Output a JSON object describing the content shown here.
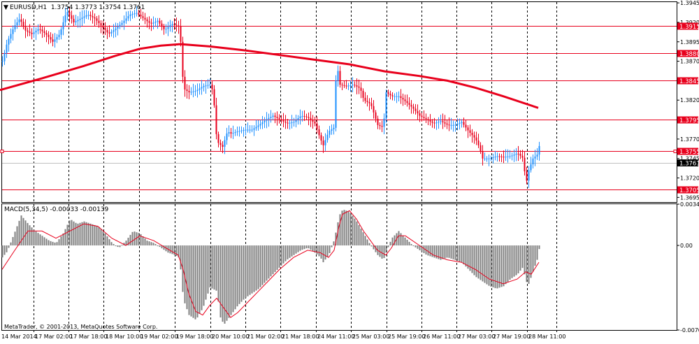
{
  "chart_data": [
    {
      "type": "candlestick",
      "title": "EURUSD,H1  1.3754 1.3773 1.3754 1.3761",
      "symbol": "EURUSD",
      "timeframe": "H1",
      "ohlc_last": [
        1.3754,
        1.3773,
        1.3754,
        1.3761
      ],
      "ylim": [
        1.3689,
        1.3946
      ],
      "grid": true,
      "y_ticks": [
        "1.3945",
        "1.3920",
        "1.3895",
        "1.3870",
        "1.3820",
        "1.3770",
        "1.3745",
        "1.3720",
        "1.3695"
      ],
      "price_label": "1.3761",
      "up_color": "#1e90ff",
      "down_color": "#e8001c",
      "horizontal_levels": [
        {
          "value": 1.3915,
          "label": "1.3915"
        },
        {
          "value": 1.388,
          "label": "1.3880"
        },
        {
          "value": 1.3845,
          "label": "1.3845"
        },
        {
          "value": 1.3795,
          "label": "1.3795"
        },
        {
          "value": 1.3755,
          "label": "1.3755"
        },
        {
          "value": 1.3705,
          "label": "1.3705"
        }
      ],
      "level_color": "#e8001c",
      "moving_average": {
        "color": "#e8001c",
        "x": [
          0,
          60,
          120,
          165,
          200,
          230,
          258,
          300,
          350,
          400,
          450,
          500,
          550,
          600,
          640,
          680,
          720,
          770
        ],
        "y": [
          1.3833,
          1.3848,
          1.3864,
          1.3877,
          1.3886,
          1.389,
          1.3892,
          1.3889,
          1.3884,
          1.3878,
          1.3872,
          1.3866,
          1.3857,
          1.3851,
          1.3845,
          1.3836,
          1.3825,
          1.381
        ]
      },
      "price_path": {
        "x": [
          3,
          10,
          20,
          28,
          35,
          45,
          55,
          65,
          75,
          85,
          95,
          105,
          115,
          125,
          135,
          145,
          155,
          165,
          175,
          185,
          195,
          205,
          215,
          225,
          235,
          245,
          255,
          258,
          262,
          270,
          280,
          290,
          300,
          305,
          308,
          312,
          318,
          325,
          330,
          340,
          350,
          360,
          370,
          380,
          390,
          400,
          410,
          420,
          430,
          440,
          450,
          458,
          462,
          470,
          478,
          481,
          485,
          495,
          505,
          515,
          520,
          530,
          540,
          548,
          552,
          560,
          570,
          580,
          590,
          600,
          610,
          620,
          630,
          640,
          650,
          660,
          670,
          680,
          685,
          690,
          700,
          710,
          720,
          730,
          740,
          748,
          752,
          756,
          762,
          768,
          771
        ],
        "y": [
          1.387,
          1.3895,
          1.3915,
          1.3925,
          1.391,
          1.3905,
          1.3912,
          1.3905,
          1.3895,
          1.3905,
          1.3935,
          1.392,
          1.3925,
          1.393,
          1.3925,
          1.3915,
          1.3905,
          1.3912,
          1.392,
          1.393,
          1.3932,
          1.3925,
          1.3918,
          1.3922,
          1.391,
          1.3918,
          1.3915,
          1.3895,
          1.3835,
          1.383,
          1.3832,
          1.3838,
          1.384,
          1.383,
          1.378,
          1.3765,
          1.376,
          1.378,
          1.3777,
          1.378,
          1.3782,
          1.3782,
          1.3788,
          1.3795,
          1.38,
          1.3795,
          1.379,
          1.3792,
          1.38,
          1.3798,
          1.379,
          1.377,
          1.3762,
          1.378,
          1.3785,
          1.3875,
          1.384,
          1.3838,
          1.384,
          1.3835,
          1.382,
          1.3815,
          1.3788,
          1.3785,
          1.383,
          1.3825,
          1.3825,
          1.3818,
          1.381,
          1.38,
          1.3795,
          1.379,
          1.3793,
          1.3788,
          1.3788,
          1.3792,
          1.378,
          1.377,
          1.376,
          1.3745,
          1.3745,
          1.3748,
          1.3747,
          1.3748,
          1.3752,
          1.3745,
          1.3712,
          1.373,
          1.3745,
          1.375,
          1.3761
        ]
      },
      "x_labels": [
        "14 Mar 2014",
        "17 Mar 02:00",
        "17 Mar 18:00",
        "18 Mar 10:00",
        "19 Mar 02:00",
        "19 Mar 18:00",
        "20 Mar 10:00",
        "21 Mar 02:00",
        "21 Mar 18:00",
        "24 Mar 11:00",
        "25 Mar 03:00",
        "25 Mar 19:00",
        "26 Mar 11:00",
        "27 Mar 03:00",
        "27 Mar 19:00",
        "28 Mar 11:00"
      ]
    },
    {
      "type": "bar",
      "title": "MACD(5,34,5) -0.00033 -0.00139",
      "indicator": "MACD",
      "params": "5,34,5",
      "values_current": [
        -0.00033,
        -0.00139
      ],
      "ylim": [
        -0.00705,
        0.00344
      ],
      "y_ticks": [
        "0.00344",
        "0.00",
        "-0.00705"
      ],
      "bar_color": "#808080",
      "signal_color": "#e8001c",
      "macd_path": {
        "x": [
          3,
          10,
          20,
          30,
          40,
          50,
          60,
          70,
          80,
          90,
          100,
          110,
          120,
          130,
          140,
          150,
          160,
          170,
          180,
          190,
          200,
          210,
          220,
          230,
          240,
          250,
          255,
          258,
          262,
          270,
          280,
          290,
          300,
          310,
          315,
          320,
          330,
          340,
          350,
          360,
          370,
          380,
          390,
          400,
          410,
          420,
          430,
          440,
          450,
          458,
          462,
          470,
          478,
          485,
          490,
          500,
          510,
          520,
          530,
          540,
          548,
          552,
          560,
          570,
          580,
          590,
          600,
          610,
          620,
          630,
          640,
          650,
          660,
          670,
          680,
          690,
          700,
          710,
          720,
          730,
          740,
          748,
          752,
          756,
          762,
          768,
          771
        ],
        "y": [
          -0.001,
          -0.0005,
          0.001,
          0.0025,
          0.0018,
          0.0012,
          0.0008,
          0.0004,
          0.0002,
          0.001,
          0.0022,
          0.0018,
          0.002,
          0.0018,
          0.0016,
          0.001,
          0.0002,
          -0.0002,
          0.0004,
          0.0012,
          0.001,
          0.0004,
          0.0002,
          -0.0002,
          -0.0006,
          -0.0008,
          -0.001,
          -0.002,
          -0.0045,
          -0.0058,
          -0.0062,
          -0.0052,
          -0.0035,
          -0.0038,
          -0.006,
          -0.0066,
          -0.0058,
          -0.005,
          -0.0044,
          -0.004,
          -0.0036,
          -0.003,
          -0.0024,
          -0.0018,
          -0.0012,
          -0.0008,
          -0.0004,
          -0.0002,
          -0.0006,
          -0.001,
          -0.0014,
          -0.0008,
          0.0005,
          0.0025,
          0.003,
          0.0028,
          0.002,
          0.001,
          0.0,
          -0.0008,
          -0.0012,
          -0.0006,
          0.0006,
          0.0012,
          0.0006,
          0.0,
          -0.0004,
          -0.0008,
          -0.001,
          -0.0012,
          -0.001,
          -0.0012,
          -0.0014,
          -0.002,
          -0.0026,
          -0.003,
          -0.0034,
          -0.0036,
          -0.0034,
          -0.0028,
          -0.0024,
          -0.0018,
          -0.003,
          -0.0032,
          -0.0022,
          -0.0012,
          -0.0003
        ]
      },
      "signal_path": {
        "x": [
          3,
          20,
          40,
          60,
          80,
          100,
          120,
          140,
          160,
          180,
          200,
          220,
          240,
          255,
          262,
          270,
          280,
          290,
          300,
          310,
          320,
          330,
          340,
          350,
          360,
          370,
          380,
          390,
          400,
          420,
          440,
          458,
          470,
          478,
          485,
          490,
          500,
          510,
          520,
          530,
          540,
          552,
          560,
          570,
          580,
          600,
          620,
          640,
          660,
          680,
          700,
          720,
          740,
          752,
          760,
          771
        ],
        "y": [
          -0.002,
          -0.0005,
          0.0012,
          0.0012,
          0.0006,
          0.0012,
          0.0018,
          0.0016,
          0.0006,
          0.0,
          0.0008,
          0.0004,
          -0.0003,
          -0.0008,
          -0.002,
          -0.004,
          -0.0055,
          -0.0058,
          -0.005,
          -0.0044,
          -0.0052,
          -0.006,
          -0.0056,
          -0.005,
          -0.0044,
          -0.0038,
          -0.0032,
          -0.0026,
          -0.002,
          -0.001,
          -0.0004,
          -0.0006,
          -0.001,
          -0.0004,
          0.0016,
          0.0026,
          0.0029,
          0.0022,
          0.0012,
          0.0004,
          -0.0004,
          -0.0008,
          -0.0002,
          0.0008,
          0.0008,
          0.0,
          -0.0008,
          -0.0012,
          -0.0014,
          -0.002,
          -0.0028,
          -0.0032,
          -0.0028,
          -0.0022,
          -0.0024,
          -0.0014
        ]
      }
    }
  ],
  "footer": {
    "copyright": "MetaTrader, © 2001-2013, MetaQuotes Software Corp."
  }
}
